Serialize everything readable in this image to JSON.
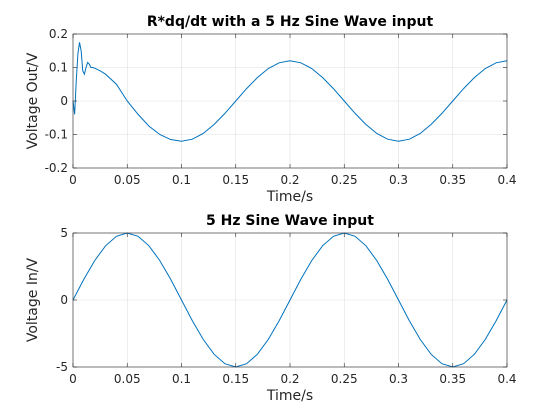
{
  "chart_data": [
    {
      "type": "line",
      "title": "R*dq/dt with a 5 Hz Sine Wave input",
      "xlabel": "Time/s",
      "ylabel": "Voltage Out/V",
      "xlim": [
        0,
        0.4
      ],
      "ylim": [
        -0.2,
        0.2
      ],
      "xticks": [
        0,
        0.05,
        0.1,
        0.15,
        0.2,
        0.25,
        0.3,
        0.35,
        0.4
      ],
      "xtick_labels": [
        "0",
        "0.05",
        "0.1",
        "0.15",
        "0.2",
        "0.25",
        "0.3",
        "0.35",
        "0.4"
      ],
      "yticks": [
        -0.2,
        -0.1,
        0,
        0.1,
        0.2
      ],
      "ytick_labels": [
        "-0.2",
        "-0.1",
        "0",
        "0.1",
        "0.2"
      ],
      "grid": true,
      "series": [
        {
          "color": "#0072bd",
          "x": [
            0,
            0.0015,
            0.003,
            0.0045,
            0.006,
            0.0075,
            0.009,
            0.0105,
            0.012,
            0.0135,
            0.015,
            0.0165,
            0.018,
            0.02,
            0.025,
            0.03,
            0.04,
            0.05,
            0.06,
            0.07,
            0.08,
            0.09,
            0.1,
            0.11,
            0.12,
            0.13,
            0.14,
            0.15,
            0.16,
            0.17,
            0.18,
            0.19,
            0.2,
            0.21,
            0.22,
            0.23,
            0.24,
            0.25,
            0.26,
            0.27,
            0.28,
            0.29,
            0.3,
            0.31,
            0.32,
            0.33,
            0.34,
            0.35,
            0.36,
            0.37,
            0.38,
            0.39,
            0.4
          ],
          "y": [
            0,
            -0.04,
            0.06,
            0.14,
            0.175,
            0.15,
            0.09,
            0.08,
            0.1,
            0.115,
            0.11,
            0.1,
            0.1,
            0.098,
            0.09,
            0.08,
            0.05,
            0.0,
            -0.04,
            -0.075,
            -0.1,
            -0.115,
            -0.12,
            -0.114,
            -0.097,
            -0.07,
            -0.037,
            0.0,
            0.037,
            0.07,
            0.097,
            0.114,
            0.12,
            0.114,
            0.097,
            0.07,
            0.037,
            0.0,
            -0.037,
            -0.07,
            -0.097,
            -0.114,
            -0.12,
            -0.114,
            -0.097,
            -0.07,
            -0.037,
            0.0,
            0.037,
            0.07,
            0.097,
            0.114,
            0.12
          ]
        }
      ]
    },
    {
      "type": "line",
      "title": "5 Hz Sine Wave input",
      "xlabel": "Time/s",
      "ylabel": "Voltage In/V",
      "xlim": [
        0,
        0.4
      ],
      "ylim": [
        -5,
        5
      ],
      "xticks": [
        0,
        0.05,
        0.1,
        0.15,
        0.2,
        0.25,
        0.3,
        0.35,
        0.4
      ],
      "xtick_labels": [
        "0",
        "0.05",
        "0.1",
        "0.15",
        "0.2",
        "0.25",
        "0.3",
        "0.35",
        "0.4"
      ],
      "yticks": [
        -5,
        0,
        5
      ],
      "ytick_labels": [
        "-5",
        "0",
        "5"
      ],
      "grid": true,
      "series": [
        {
          "color": "#0072bd",
          "x": [
            0,
            0.01,
            0.02,
            0.03,
            0.04,
            0.05,
            0.06,
            0.07,
            0.08,
            0.09,
            0.1,
            0.11,
            0.12,
            0.13,
            0.14,
            0.15,
            0.16,
            0.17,
            0.18,
            0.19,
            0.2,
            0.21,
            0.22,
            0.23,
            0.24,
            0.25,
            0.26,
            0.27,
            0.28,
            0.29,
            0.3,
            0.31,
            0.32,
            0.33,
            0.34,
            0.35,
            0.36,
            0.37,
            0.38,
            0.39,
            0.4
          ],
          "y": [
            0,
            1.545,
            2.939,
            4.045,
            4.755,
            5,
            4.755,
            4.045,
            2.939,
            1.545,
            0,
            -1.545,
            -2.939,
            -4.045,
            -4.755,
            -5,
            -4.755,
            -4.045,
            -2.939,
            -1.545,
            0,
            1.545,
            2.939,
            4.045,
            4.755,
            5,
            4.755,
            4.045,
            2.939,
            1.545,
            0,
            -1.545,
            -2.939,
            -4.045,
            -4.755,
            -5,
            -4.755,
            -4.045,
            -2.939,
            -1.545,
            0
          ]
        }
      ]
    }
  ]
}
